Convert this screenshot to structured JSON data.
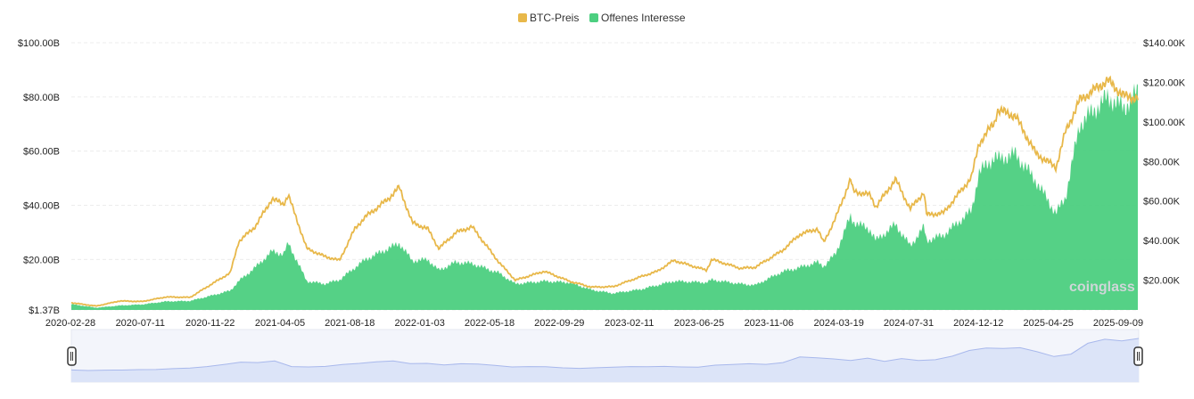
{
  "colors": {
    "btc_price": "#e8b84a",
    "open_interest": "#4ccf80",
    "grid": "#ececec",
    "navigator_fill": "#dce4f8",
    "navigator_line": "#a8b8ec"
  },
  "watermark": "coinglass",
  "chart_data": {
    "type": "area",
    "legend": [
      {
        "name": "BTC-Preis",
        "color": "#e8b84a"
      },
      {
        "name": "Offenes Interesse",
        "color": "#4ccf80"
      }
    ],
    "legend_position": "top-center",
    "grid": true,
    "x_ticks": [
      "2020-02-28",
      "2020-07-11",
      "2020-11-22",
      "2021-04-05",
      "2021-08-18",
      "2022-01-03",
      "2022-05-18",
      "2022-09-29",
      "2023-02-11",
      "2023-06-25",
      "2023-11-06",
      "2024-03-19",
      "2024-07-31",
      "2024-12-12",
      "2025-04-25",
      "2025-09-09"
    ],
    "left_axis": {
      "series": "Offenes Interesse",
      "ticks": [
        "$1.37B",
        "$20.00B",
        "$40.00B",
        "$60.00B",
        "$80.00B",
        "$100.00B"
      ],
      "ylim": [
        1.37,
        100
      ],
      "unit": "B USD"
    },
    "right_axis": {
      "series": "BTC-Preis",
      "ticks": [
        "$20.00K",
        "$40.00K",
        "$60.00K",
        "$80.00K",
        "$100.00K",
        "$120.00K",
        "$140.00K"
      ],
      "ylim": [
        0,
        140
      ],
      "unit": "K USD"
    },
    "x": [
      "2020-02-28",
      "2020-04-15",
      "2020-05-30",
      "2020-07-11",
      "2020-08-25",
      "2020-10-10",
      "2020-11-22",
      "2020-12-25",
      "2021-01-10",
      "2021-02-10",
      "2021-03-14",
      "2021-04-05",
      "2021-04-14",
      "2021-05-19",
      "2021-06-22",
      "2021-07-20",
      "2021-08-18",
      "2021-09-07",
      "2021-10-20",
      "2021-11-10",
      "2021-12-05",
      "2022-01-03",
      "2022-01-24",
      "2022-02-25",
      "2022-03-28",
      "2022-05-18",
      "2022-06-18",
      "2022-08-12",
      "2022-09-29",
      "2022-11-09",
      "2022-12-20",
      "2023-02-11",
      "2023-03-14",
      "2023-04-14",
      "2023-06-15",
      "2023-06-25",
      "2023-08-18",
      "2023-09-15",
      "2023-11-06",
      "2023-12-08",
      "2024-01-11",
      "2024-01-23",
      "2024-02-14",
      "2024-03-14",
      "2024-03-19",
      "2024-04-20",
      "2024-05-01",
      "2024-06-07",
      "2024-07-05",
      "2024-07-31",
      "2024-08-05",
      "2024-09-06",
      "2024-10-29",
      "2024-11-12",
      "2024-12-12",
      "2024-12-17",
      "2025-01-20",
      "2025-02-28",
      "2025-04-07",
      "2025-04-25",
      "2025-05-22",
      "2025-07-14",
      "2025-08-14",
      "2025-09-09"
    ],
    "series": [
      {
        "name": "BTC-Preis",
        "unit": "K USD",
        "values": [
          8.6,
          6.9,
          9.5,
          9.2,
          11.5,
          11.3,
          18.4,
          23.7,
          39.5,
          47,
          61,
          58.5,
          63,
          36,
          32,
          30,
          46,
          52,
          61,
          67,
          49,
          46,
          36,
          44,
          47,
          29,
          20,
          24.5,
          19.4,
          16.5,
          16.7,
          21.8,
          24.5,
          30,
          25,
          30.5,
          26,
          26.5,
          35,
          43,
          46,
          39,
          51,
          71,
          65,
          63,
          57,
          71,
          56,
          64.5,
          53,
          54,
          72,
          89,
          100,
          106,
          103,
          84,
          77,
          95,
          111,
          121,
          113,
          112
        ]
      },
      {
        "name": "Offenes Interesse",
        "unit": "B USD",
        "values": [
          3.5,
          2.2,
          3,
          3.4,
          4.5,
          4.7,
          6.8,
          8.5,
          12,
          17,
          23,
          22,
          26,
          12,
          11,
          12.5,
          17,
          20,
          24,
          26,
          19.5,
          20,
          16,
          19,
          18.5,
          15,
          11,
          12,
          11.5,
          8.8,
          7.5,
          9,
          10.5,
          12,
          11.5,
          12.5,
          11,
          10.5,
          15.5,
          17,
          19,
          17.5,
          22,
          36,
          34,
          31,
          27,
          33,
          25,
          32,
          27,
          29,
          38,
          52,
          58,
          57,
          59,
          49,
          37,
          43,
          70,
          80,
          76,
          82
        ]
      }
    ]
  },
  "navigator": {
    "values": [
      3.5,
      2.2,
      3,
      3.4,
      4.5,
      4.7,
      6.8,
      8.5,
      12,
      17,
      23,
      22,
      26,
      12,
      11,
      12.5,
      17,
      20,
      24,
      26,
      19.5,
      20,
      16,
      19,
      18.5,
      15,
      11,
      12,
      11.5,
      8.8,
      7.5,
      9,
      10.5,
      12,
      11.5,
      12.5,
      11,
      10.5,
      15.5,
      17,
      19,
      17.5,
      22,
      36,
      34,
      31,
      27,
      33,
      25,
      32,
      27,
      29,
      38,
      52,
      58,
      57,
      59,
      49,
      37,
      43,
      70,
      80,
      76,
      82
    ]
  }
}
